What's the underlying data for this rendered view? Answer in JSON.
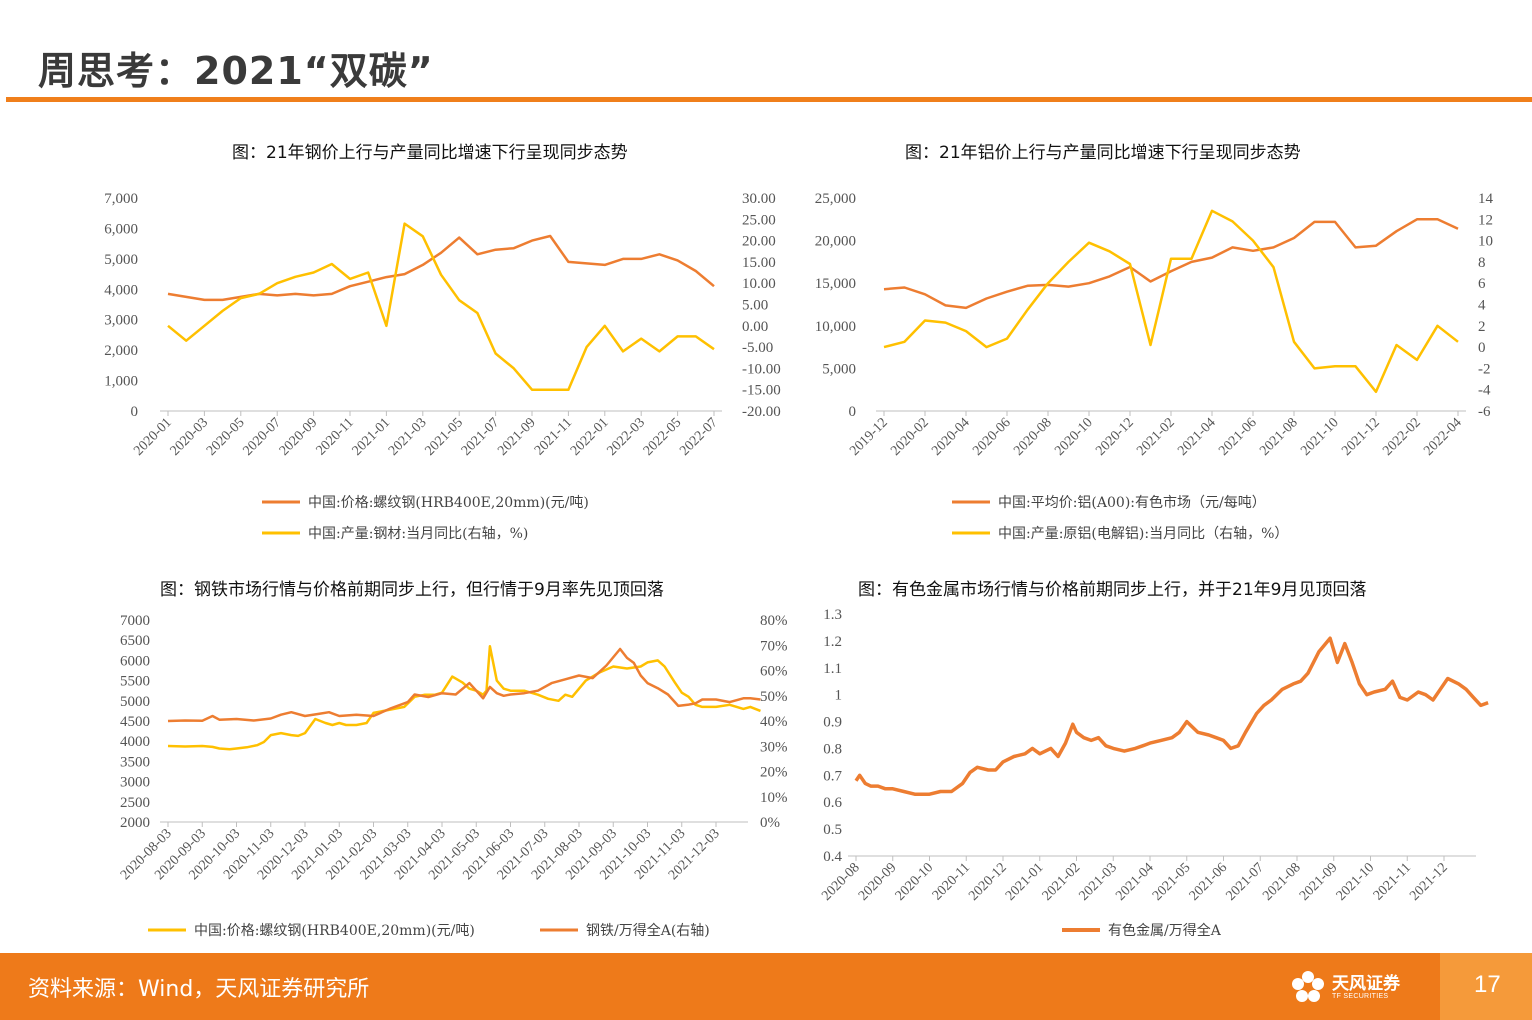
{
  "page": {
    "title": "周思考：2021“双碳”",
    "source": "资料来源：Wind，天风证券研究所",
    "logo_cn": "天风证券",
    "logo_en": "TF SECURITIES",
    "page_number": "17"
  },
  "colors": {
    "accent": "#f07f1b",
    "orange": "#ED7D31",
    "yellow": "#FFC000",
    "footer": "#ee7a1a"
  },
  "chart_data": [
    {
      "id": "chart1",
      "type": "line",
      "title": "图：21年钢价上行与产量同比增速下行呈现同步态势",
      "x": [
        "2020-01",
        "2020-02",
        "2020-03",
        "2020-04",
        "2020-05",
        "2020-06",
        "2020-07",
        "2020-08",
        "2020-09",
        "2020-10",
        "2020-11",
        "2020-12",
        "2021-01",
        "2021-02",
        "2021-03",
        "2021-04",
        "2021-05",
        "2021-06",
        "2021-07",
        "2021-08",
        "2021-09",
        "2021-10",
        "2021-11",
        "2021-12",
        "2022-01",
        "2022-02",
        "2022-03",
        "2022-04",
        "2022-05",
        "2022-06",
        "2022-07"
      ],
      "x_ticks": [
        "2020-01",
        "2020-03",
        "2020-05",
        "2020-07",
        "2020-09",
        "2020-11",
        "2021-01",
        "2021-03",
        "2021-05",
        "2021-07",
        "2021-09",
        "2021-11",
        "2022-01",
        "2022-03",
        "2022-05",
        "2022-07"
      ],
      "left_axis": {
        "min": 0,
        "max": 7000,
        "ticks": [
          "0",
          "1,000",
          "2,000",
          "3,000",
          "4,000",
          "5,000",
          "6,000",
          "7,000"
        ]
      },
      "right_axis": {
        "min": -20,
        "max": 30,
        "ticks": [
          "-20.00",
          "-15.00",
          "-10.00",
          "-5.00",
          "0.00",
          "5.00",
          "10.00",
          "15.00",
          "20.00",
          "25.00",
          "30.00"
        ]
      },
      "series": [
        {
          "name": "中国:价格:螺纹钢(HRB400E,20mm)(元/吨)",
          "axis": "left",
          "color": "#ED7D31",
          "values": [
            3850,
            3750,
            3650,
            3650,
            3750,
            3850,
            3800,
            3850,
            3800,
            3850,
            4100,
            4250,
            4400,
            4500,
            4800,
            5200,
            5700,
            5150,
            5300,
            5350,
            5600,
            5750,
            4900,
            4850,
            4800,
            5000,
            5000,
            5150,
            4950,
            4600,
            4100
          ]
        },
        {
          "name": "中国:产量:钢材:当月同比(右轴，%)",
          "axis": "right",
          "color": "#FFC000",
          "values": [
            0.0,
            -3.5,
            0.0,
            3.5,
            6.5,
            7.5,
            10.0,
            11.5,
            12.5,
            14.5,
            11.0,
            12.5,
            0.0,
            24.0,
            21.0,
            12.0,
            6.0,
            3.0,
            -6.5,
            -10.0,
            -15.0,
            -15.0,
            -15.0,
            -5.0,
            0.0,
            -6.0,
            -3.0,
            -6.0,
            -2.5,
            -2.5,
            -5.5
          ]
        }
      ]
    },
    {
      "id": "chart2",
      "type": "line",
      "title": "图：21年铝价上行与产量同比增速下行呈现同步态势",
      "x": [
        "2019-12",
        "2020-01",
        "2020-02",
        "2020-03",
        "2020-04",
        "2020-05",
        "2020-06",
        "2020-07",
        "2020-08",
        "2020-09",
        "2020-10",
        "2020-11",
        "2020-12",
        "2021-01",
        "2021-02",
        "2021-03",
        "2021-04",
        "2021-05",
        "2021-06",
        "2021-07",
        "2021-08",
        "2021-09",
        "2021-10",
        "2021-11",
        "2021-12",
        "2022-01",
        "2022-02",
        "2022-03",
        "2022-04"
      ],
      "x_ticks": [
        "2019-12",
        "2020-02",
        "2020-04",
        "2020-06",
        "2020-08",
        "2020-10",
        "2020-12",
        "2021-02",
        "2021-04",
        "2021-06",
        "2021-08",
        "2021-10",
        "2021-12",
        "2022-02",
        "2022-04"
      ],
      "left_axis": {
        "min": 0,
        "max": 25000,
        "ticks": [
          "0",
          "5,000",
          "10,000",
          "15,000",
          "20,000",
          "25,000"
        ]
      },
      "right_axis": {
        "min": -6,
        "max": 14,
        "ticks": [
          "-6",
          "-4",
          "-2",
          "0",
          "2",
          "4",
          "6",
          "8",
          "10",
          "12",
          "14"
        ]
      },
      "series": [
        {
          "name": "中国:平均价:铝(A00):有色市场（元/每吨）",
          "axis": "left",
          "color": "#ED7D31",
          "values": [
            14300,
            14500,
            13700,
            12400,
            12100,
            13200,
            14000,
            14700,
            14800,
            14600,
            15000,
            15800,
            16900,
            15200,
            16400,
            17500,
            18000,
            19200,
            18800,
            19200,
            20300,
            22200,
            22200,
            19200,
            19400,
            21100,
            22500,
            22500,
            21400
          ]
        },
        {
          "name": "中国:产量:原铝(电解铝):当月同比（右轴，%）",
          "axis": "right",
          "color": "#FFC000",
          "values": [
            0.0,
            0.5,
            2.5,
            2.3,
            1.5,
            0.0,
            0.8,
            3.5,
            6.0,
            8.0,
            9.8,
            9.0,
            7.8,
            0.2,
            8.3,
            8.3,
            12.8,
            11.8,
            10.0,
            7.5,
            0.5,
            -2.0,
            -1.8,
            -1.8,
            -4.2,
            0.2,
            -1.2,
            2.0,
            0.5
          ]
        }
      ]
    },
    {
      "id": "chart3",
      "type": "line",
      "title": "图：钢铁市场行情与价格前期同步上行，但行情于9月率先见顶回落",
      "x_ticks": [
        "2020-08-03",
        "2020-09-03",
        "2020-10-03",
        "2020-11-03",
        "2020-12-03",
        "2021-01-03",
        "2021-02-03",
        "2021-03-03",
        "2021-04-03",
        "2021-05-03",
        "2021-06-03",
        "2021-07-03",
        "2021-08-03",
        "2021-09-03",
        "2021-10-03",
        "2021-11-03",
        "2021-12-03"
      ],
      "left_axis": {
        "min": 2000,
        "max": 7000,
        "ticks": [
          "2000",
          "2500",
          "3000",
          "3500",
          "4000",
          "4500",
          "5000",
          "5500",
          "6000",
          "6500",
          "7000"
        ]
      },
      "right_axis": {
        "min": 0,
        "max": 80,
        "ticks": [
          "0%",
          "10%",
          "20%",
          "30%",
          "40%",
          "50%",
          "60%",
          "70%",
          "80%"
        ]
      },
      "series": [
        {
          "name": "中国:价格:螺纹钢(HRB400E,20mm)(元/吨)",
          "axis": "left",
          "color": "#FFC000",
          "x": [
            0.0,
            0.5,
            1.0,
            1.3,
            1.5,
            1.8,
            2.0,
            2.3,
            2.6,
            2.8,
            3.0,
            3.3,
            3.6,
            3.8,
            4.0,
            4.3,
            4.6,
            4.8,
            5.0,
            5.2,
            5.5,
            5.8,
            6.0,
            6.3,
            6.6,
            6.9,
            7.2,
            7.5,
            7.8,
            8.0,
            8.3,
            8.6,
            8.8,
            9.0,
            9.1,
            9.2,
            9.3,
            9.4,
            9.6,
            9.8,
            10.0,
            10.4,
            10.8,
            11.1,
            11.4,
            11.6,
            11.8,
            12.2,
            12.6,
            13.0,
            13.4,
            13.8,
            14.0,
            14.3,
            14.5,
            14.8,
            15.0,
            15.2,
            15.4,
            15.6,
            16.0,
            16.4,
            16.8,
            17.0,
            17.3
          ],
          "values": [
            3880,
            3870,
            3880,
            3860,
            3820,
            3800,
            3820,
            3850,
            3900,
            3980,
            4150,
            4200,
            4150,
            4130,
            4200,
            4550,
            4450,
            4400,
            4450,
            4400,
            4400,
            4450,
            4700,
            4750,
            4800,
            4850,
            5100,
            5150,
            5150,
            5200,
            5600,
            5450,
            5300,
            5250,
            5200,
            5150,
            5250,
            6350,
            5500,
            5300,
            5250,
            5250,
            5150,
            5050,
            5000,
            5150,
            5100,
            5500,
            5700,
            5850,
            5800,
            5850,
            5950,
            6000,
            5850,
            5450,
            5200,
            5100,
            4900,
            4850,
            4850,
            4900,
            4800,
            4850,
            4750
          ]
        },
        {
          "name": "钢铁/万得全A(右轴)",
          "axis": "right",
          "color": "#ED7D31",
          "x": [
            0.0,
            0.5,
            1.0,
            1.3,
            1.5,
            2.0,
            2.5,
            3.0,
            3.3,
            3.6,
            4.0,
            4.4,
            4.7,
            5.0,
            5.5,
            6.0,
            6.5,
            7.0,
            7.2,
            7.6,
            8.0,
            8.4,
            8.8,
            9.0,
            9.2,
            9.4,
            9.6,
            9.8,
            10.0,
            10.4,
            10.8,
            11.2,
            11.6,
            12.0,
            12.4,
            12.8,
            13.2,
            13.4,
            13.6,
            13.8,
            14.0,
            14.3,
            14.6,
            14.9,
            15.2,
            15.4,
            15.6,
            16.0,
            16.4,
            16.8,
            17.0,
            17.3
          ],
          "values": [
            40.0,
            40.2,
            40.1,
            42.0,
            40.5,
            40.8,
            40.2,
            41.0,
            42.5,
            43.5,
            42.0,
            42.8,
            43.5,
            42.0,
            42.5,
            42.0,
            45.0,
            47.5,
            50.5,
            49.5,
            51.0,
            50.5,
            55.0,
            52.0,
            49.0,
            53.5,
            51.0,
            50.0,
            50.5,
            51.0,
            52.0,
            55.0,
            56.5,
            58.0,
            57.0,
            62.0,
            68.5,
            65.0,
            63.0,
            58.0,
            55.0,
            53.0,
            50.5,
            46.0,
            46.5,
            47.0,
            48.5,
            48.5,
            47.5,
            49.0,
            49.0,
            48.5
          ]
        }
      ]
    },
    {
      "id": "chart4",
      "type": "line",
      "title": "图：有色金属市场行情与价格前期同步上行，并于21年9月见顶回落",
      "x_ticks": [
        "2020-08",
        "2020-09",
        "2020-10",
        "2020-11",
        "2020-12",
        "2021-01",
        "2021-02",
        "2021-03",
        "2021-04",
        "2021-05",
        "2021-06",
        "2021-07",
        "2021-08",
        "2021-09",
        "2021-10",
        "2021-11",
        "2021-12"
      ],
      "left_axis": {
        "min": 0.4,
        "max": 1.3,
        "ticks": [
          "0.4",
          "0.5",
          "0.6",
          "0.7",
          "0.8",
          "0.9",
          "1",
          "1.1",
          "1.2",
          "1.3"
        ]
      },
      "series": [
        {
          "name": "有色金属/万得全A",
          "axis": "left",
          "color": "#ED7D31",
          "x": [
            0.0,
            0.1,
            0.25,
            0.4,
            0.6,
            0.8,
            1.0,
            1.3,
            1.6,
            1.8,
            2.0,
            2.3,
            2.6,
            2.9,
            3.1,
            3.3,
            3.6,
            3.8,
            4.0,
            4.3,
            4.6,
            4.8,
            5.0,
            5.3,
            5.5,
            5.7,
            5.9,
            6.0,
            6.2,
            6.4,
            6.6,
            6.8,
            7.0,
            7.3,
            7.6,
            7.8,
            8.0,
            8.3,
            8.6,
            8.8,
            9.0,
            9.3,
            9.6,
            9.8,
            10.0,
            10.2,
            10.4,
            10.6,
            10.9,
            11.1,
            11.3,
            11.6,
            11.9,
            12.1,
            12.3,
            12.6,
            12.9,
            13.1,
            13.3,
            13.5,
            13.7,
            13.9,
            14.1,
            14.4,
            14.6,
            14.8,
            15.0,
            15.3,
            15.5,
            15.7,
            15.9,
            16.1,
            16.4,
            16.6,
            16.8,
            17.0,
            17.2
          ],
          "values": [
            0.68,
            0.7,
            0.67,
            0.66,
            0.66,
            0.65,
            0.65,
            0.64,
            0.63,
            0.63,
            0.63,
            0.64,
            0.64,
            0.67,
            0.71,
            0.73,
            0.72,
            0.72,
            0.75,
            0.77,
            0.78,
            0.8,
            0.78,
            0.8,
            0.77,
            0.82,
            0.89,
            0.86,
            0.84,
            0.83,
            0.84,
            0.81,
            0.8,
            0.79,
            0.8,
            0.81,
            0.82,
            0.83,
            0.84,
            0.86,
            0.9,
            0.86,
            0.85,
            0.84,
            0.83,
            0.8,
            0.81,
            0.86,
            0.93,
            0.96,
            0.98,
            1.02,
            1.04,
            1.05,
            1.08,
            1.16,
            1.21,
            1.12,
            1.19,
            1.12,
            1.04,
            1.0,
            1.01,
            1.02,
            1.05,
            0.99,
            0.98,
            1.01,
            1.0,
            0.98,
            1.02,
            1.06,
            1.04,
            1.02,
            0.99,
            0.96,
            0.97
          ]
        }
      ]
    }
  ]
}
